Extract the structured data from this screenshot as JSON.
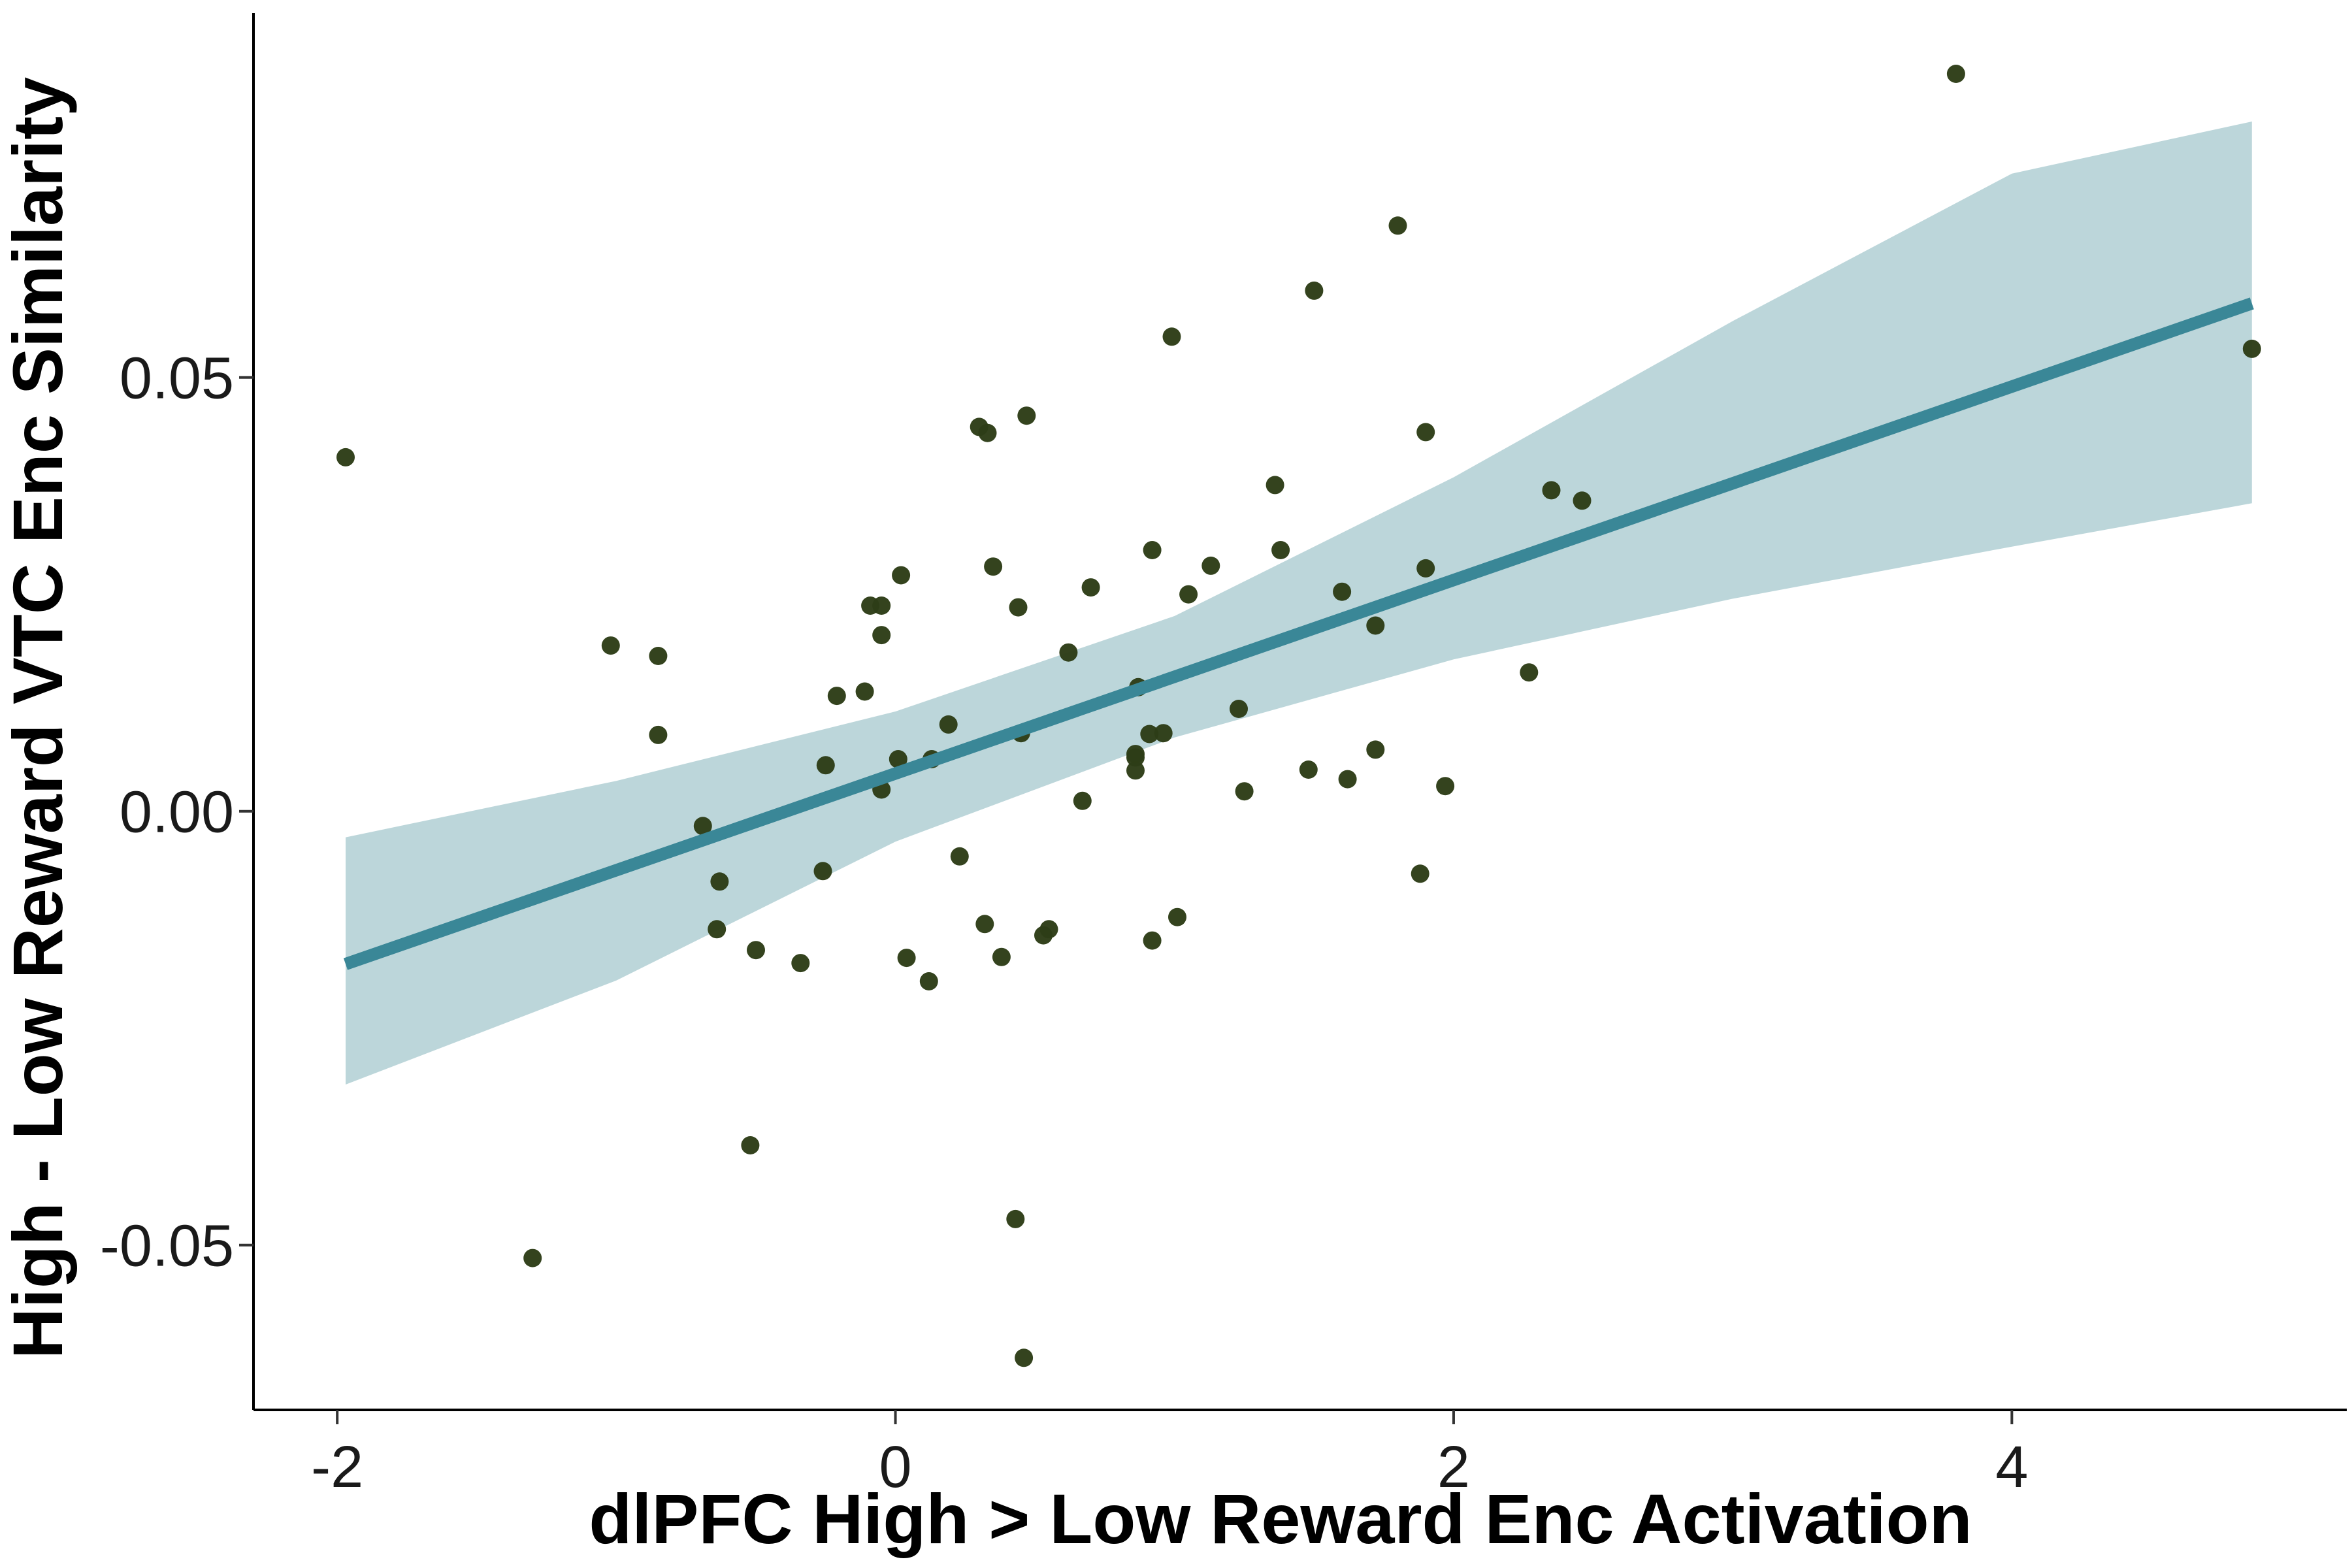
{
  "chart_data": {
    "type": "scatter",
    "xlabel": "dlPFC High > Low Reward Enc Activation",
    "ylabel": "High - Low Reward VTC Enc Similarity",
    "xlim": [
      -2.3,
      5.2
    ],
    "ylim": [
      -0.069,
      0.092
    ],
    "x_ticks": [
      -2,
      0,
      2,
      4
    ],
    "x_tick_labels": [
      "-2",
      "0",
      "2",
      "4"
    ],
    "y_ticks": [
      -0.05,
      0.0,
      0.05
    ],
    "y_tick_labels": [
      "-0.05",
      "0.00",
      "0.05"
    ],
    "grid": false,
    "legend": "none",
    "colors": {
      "points": "#2d3d17",
      "fit_line": "#3a8797",
      "ribbon": "#b0cfd4",
      "axis": "#000000"
    },
    "fit": {
      "x_range": [
        -1.97,
        4.86
      ],
      "intercept": 0.00435,
      "slope": 0.01115,
      "ci_lower": [
        [
          -1.97,
          -0.0315
        ],
        [
          -1.0,
          -0.0195
        ],
        [
          0.0,
          -0.0035
        ],
        [
          1.0,
          0.0085
        ],
        [
          2.0,
          0.0175
        ],
        [
          3.0,
          0.0245
        ],
        [
          4.0,
          0.0305
        ],
        [
          4.86,
          0.0355
        ]
      ],
      "ci_upper": [
        [
          -1.97,
          -0.003
        ],
        [
          -1.0,
          0.0035
        ],
        [
          0.0,
          0.0115
        ],
        [
          1.0,
          0.0225
        ],
        [
          2.0,
          0.0385
        ],
        [
          3.0,
          0.0565
        ],
        [
          4.0,
          0.0735
        ],
        [
          4.86,
          0.0795
        ]
      ]
    },
    "points": [
      [
        -1.97,
        0.0408
      ],
      [
        -1.3,
        -0.0515
      ],
      [
        -1.02,
        0.0191
      ],
      [
        -0.85,
        0.0179
      ],
      [
        -0.85,
        0.0088
      ],
      [
        -0.69,
        -0.0017
      ],
      [
        -0.63,
        -0.0081
      ],
      [
        -0.64,
        -0.0136
      ],
      [
        -0.5,
        -0.016
      ],
      [
        -0.52,
        -0.0385
      ],
      [
        -0.34,
        -0.0175
      ],
      [
        -0.26,
        -0.0069
      ],
      [
        -0.25,
        0.0053
      ],
      [
        -0.21,
        0.0133
      ],
      [
        -0.11,
        0.0138
      ],
      [
        -0.09,
        0.0237
      ],
      [
        -0.05,
        0.0237
      ],
      [
        -0.05,
        0.0203
      ],
      [
        -0.05,
        0.0025
      ],
      [
        0.01,
        0.006
      ],
      [
        0.02,
        0.0272
      ],
      [
        0.04,
        -0.0169
      ],
      [
        0.12,
        -0.0196
      ],
      [
        0.13,
        0.006
      ],
      [
        0.19,
        0.01
      ],
      [
        0.23,
        -0.0052
      ],
      [
        0.3,
        0.0443
      ],
      [
        0.32,
        -0.013
      ],
      [
        0.33,
        0.0436
      ],
      [
        0.35,
        0.0282
      ],
      [
        0.38,
        -0.0168
      ],
      [
        0.43,
        -0.047
      ],
      [
        0.44,
        0.0235
      ],
      [
        0.45,
        0.009
      ],
      [
        0.46,
        -0.063
      ],
      [
        0.47,
        0.0456
      ],
      [
        0.53,
        -0.0143
      ],
      [
        0.55,
        -0.0136
      ],
      [
        0.62,
        0.0183
      ],
      [
        0.67,
        0.0012
      ],
      [
        0.7,
        0.0258
      ],
      [
        0.86,
        0.0047
      ],
      [
        0.86,
        0.0066
      ],
      [
        0.86,
        0.0062
      ],
      [
        0.87,
        0.0143
      ],
      [
        0.91,
        0.0089
      ],
      [
        0.92,
        -0.0149
      ],
      [
        0.92,
        0.0301
      ],
      [
        0.96,
        0.009
      ],
      [
        0.99,
        0.0547
      ],
      [
        1.01,
        -0.0122
      ],
      [
        1.05,
        0.025
      ],
      [
        1.13,
        0.0283
      ],
      [
        1.23,
        0.0118
      ],
      [
        1.25,
        0.0023
      ],
      [
        1.36,
        0.0376
      ],
      [
        1.38,
        0.0301
      ],
      [
        1.48,
        0.0048
      ],
      [
        1.5,
        0.06
      ],
      [
        1.6,
        0.0253
      ],
      [
        1.62,
        0.0037
      ],
      [
        1.72,
        0.0214
      ],
      [
        1.72,
        0.0071
      ],
      [
        1.8,
        0.0675
      ],
      [
        1.88,
        -0.0072
      ],
      [
        1.9,
        0.0437
      ],
      [
        1.9,
        0.028
      ],
      [
        1.97,
        0.0029
      ],
      [
        2.27,
        0.016
      ],
      [
        2.35,
        0.037
      ],
      [
        2.46,
        0.0358
      ],
      [
        3.8,
        0.085
      ],
      [
        4.86,
        0.0533
      ]
    ]
  }
}
